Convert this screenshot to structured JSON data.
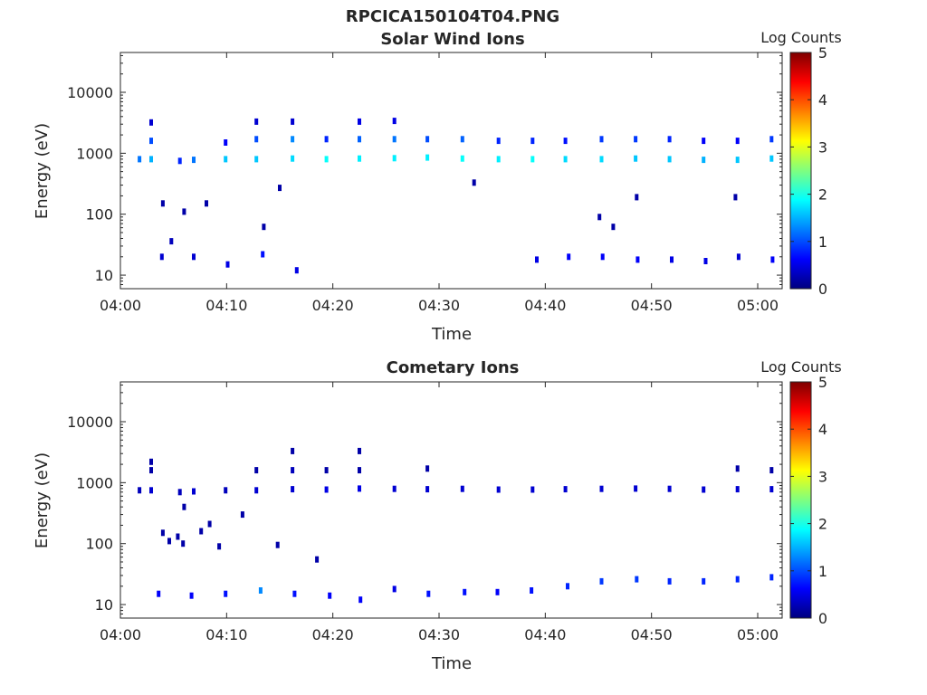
{
  "figure_title": "RPCICA150104T04.PNG",
  "colormap": [
    "#00007f",
    "#0000ff",
    "#007fff",
    "#00ffff",
    "#7fff7f",
    "#ffff00",
    "#ff7f00",
    "#ff0000",
    "#7f0000"
  ],
  "chart_data": [
    {
      "type": "heatmap",
      "title": "Solar Wind Ions",
      "xlabel": "Time",
      "ylabel": "Energy (eV)",
      "x_ticks": [
        "04:00",
        "04:10",
        "04:20",
        "04:30",
        "04:40",
        "04:50",
        "05:00"
      ],
      "x_tick_minutes": [
        0,
        10,
        20,
        30,
        40,
        50,
        60
      ],
      "xlim_minutes": [
        0,
        62.3
      ],
      "y_scale": "log",
      "ylim": [
        6,
        45000
      ],
      "y_ticks": [
        "10",
        "100",
        "1000",
        "10000"
      ],
      "y_tick_values": [
        10,
        100,
        1000,
        10000
      ],
      "colorbar_label": "Log Counts",
      "colorbar_ticks": [
        "0",
        "1",
        "2",
        "3",
        "4",
        "5"
      ],
      "colorbar_range": [
        0,
        5
      ],
      "sweep_minutes": [
        1.8,
        2.9,
        5.6,
        6.9,
        9.9,
        12.8,
        16.2,
        19.4,
        22.5,
        25.8,
        28.9,
        32.2,
        35.6,
        38.8,
        41.9,
        45.3,
        48.5,
        51.7,
        54.9,
        58.1,
        61.3
      ],
      "cells": [
        {
          "t": 1.8,
          "e": 800,
          "v": 1.2
        },
        {
          "t": 2.9,
          "e": 800,
          "v": 1.5
        },
        {
          "t": 2.9,
          "e": 1600,
          "v": 1.0
        },
        {
          "t": 2.9,
          "e": 3200,
          "v": 0.4
        },
        {
          "t": 5.6,
          "e": 750,
          "v": 0.8
        },
        {
          "t": 6.9,
          "e": 780,
          "v": 1.2
        },
        {
          "t": 9.9,
          "e": 800,
          "v": 1.6
        },
        {
          "t": 9.9,
          "e": 1500,
          "v": 0.6
        },
        {
          "t": 12.8,
          "e": 800,
          "v": 1.6
        },
        {
          "t": 12.8,
          "e": 1700,
          "v": 1.0
        },
        {
          "t": 12.8,
          "e": 3300,
          "v": 0.4
        },
        {
          "t": 16.2,
          "e": 820,
          "v": 1.7
        },
        {
          "t": 16.2,
          "e": 1700,
          "v": 1.3
        },
        {
          "t": 16.2,
          "e": 3300,
          "v": 0.4
        },
        {
          "t": 19.4,
          "e": 800,
          "v": 1.9
        },
        {
          "t": 19.4,
          "e": 1700,
          "v": 0.8
        },
        {
          "t": 22.5,
          "e": 820,
          "v": 1.8
        },
        {
          "t": 22.5,
          "e": 1700,
          "v": 1.1
        },
        {
          "t": 22.5,
          "e": 3300,
          "v": 0.5
        },
        {
          "t": 25.8,
          "e": 830,
          "v": 1.8
        },
        {
          "t": 25.8,
          "e": 1700,
          "v": 1.2
        },
        {
          "t": 25.8,
          "e": 3400,
          "v": 0.5
        },
        {
          "t": 28.9,
          "e": 850,
          "v": 1.8
        },
        {
          "t": 28.9,
          "e": 1700,
          "v": 1.0
        },
        {
          "t": 32.2,
          "e": 820,
          "v": 1.9
        },
        {
          "t": 32.2,
          "e": 1700,
          "v": 1.1
        },
        {
          "t": 35.6,
          "e": 800,
          "v": 1.8
        },
        {
          "t": 35.6,
          "e": 1600,
          "v": 0.8
        },
        {
          "t": 38.8,
          "e": 800,
          "v": 1.9
        },
        {
          "t": 38.8,
          "e": 1600,
          "v": 0.8
        },
        {
          "t": 41.9,
          "e": 800,
          "v": 1.7
        },
        {
          "t": 41.9,
          "e": 1600,
          "v": 0.7
        },
        {
          "t": 45.3,
          "e": 800,
          "v": 1.7
        },
        {
          "t": 45.3,
          "e": 1700,
          "v": 0.9
        },
        {
          "t": 48.5,
          "e": 820,
          "v": 1.6
        },
        {
          "t": 48.5,
          "e": 1700,
          "v": 0.9
        },
        {
          "t": 51.7,
          "e": 800,
          "v": 1.6
        },
        {
          "t": 51.7,
          "e": 1700,
          "v": 0.8
        },
        {
          "t": 54.9,
          "e": 780,
          "v": 1.5
        },
        {
          "t": 54.9,
          "e": 1600,
          "v": 0.6
        },
        {
          "t": 58.1,
          "e": 780,
          "v": 1.6
        },
        {
          "t": 58.1,
          "e": 1600,
          "v": 0.6
        },
        {
          "t": 61.3,
          "e": 820,
          "v": 1.6
        },
        {
          "t": 61.3,
          "e": 1700,
          "v": 0.9
        },
        {
          "t": 3.9,
          "e": 20,
          "v": 0.4
        },
        {
          "t": 6.9,
          "e": 20,
          "v": 0.4
        },
        {
          "t": 10.1,
          "e": 15,
          "v": 0.5
        },
        {
          "t": 13.4,
          "e": 22,
          "v": 0.7
        },
        {
          "t": 16.6,
          "e": 12,
          "v": 0.5
        },
        {
          "t": 39.2,
          "e": 18,
          "v": 0.5
        },
        {
          "t": 42.2,
          "e": 20,
          "v": 0.6
        },
        {
          "t": 45.4,
          "e": 20,
          "v": 0.6
        },
        {
          "t": 48.7,
          "e": 18,
          "v": 0.6
        },
        {
          "t": 51.9,
          "e": 18,
          "v": 0.5
        },
        {
          "t": 55.1,
          "e": 17,
          "v": 0.5
        },
        {
          "t": 58.2,
          "e": 20,
          "v": 0.4
        },
        {
          "t": 61.4,
          "e": 18,
          "v": 0.6
        },
        {
          "t": 4.0,
          "e": 150,
          "v": 0.2
        },
        {
          "t": 6.0,
          "e": 110,
          "v": 0.2
        },
        {
          "t": 8.1,
          "e": 150,
          "v": 0.2
        },
        {
          "t": 15.0,
          "e": 270,
          "v": 0.2
        },
        {
          "t": 33.3,
          "e": 330,
          "v": 0.2
        },
        {
          "t": 45.1,
          "e": 90,
          "v": 0.2
        },
        {
          "t": 48.6,
          "e": 190,
          "v": 0.2
        },
        {
          "t": 57.9,
          "e": 190,
          "v": 0.2
        },
        {
          "t": 4.8,
          "e": 36,
          "v": 0.3
        },
        {
          "t": 13.5,
          "e": 62,
          "v": 0.2
        },
        {
          "t": 46.4,
          "e": 62,
          "v": 0.2
        }
      ]
    },
    {
      "type": "heatmap",
      "title": "Cometary Ions",
      "xlabel": "Time",
      "ylabel": "Energy (eV)",
      "x_ticks": [
        "04:00",
        "04:10",
        "04:20",
        "04:30",
        "04:40",
        "04:50",
        "05:00"
      ],
      "x_tick_minutes": [
        0,
        10,
        20,
        30,
        40,
        50,
        60
      ],
      "xlim_minutes": [
        0,
        62.3
      ],
      "y_scale": "log",
      "ylim": [
        6,
        45000
      ],
      "y_ticks": [
        "10",
        "100",
        "1000",
        "10000"
      ],
      "y_tick_values": [
        10,
        100,
        1000,
        10000
      ],
      "colorbar_label": "Log Counts",
      "colorbar_ticks": [
        "0",
        "1",
        "2",
        "3",
        "4",
        "5"
      ],
      "colorbar_range": [
        0,
        5
      ],
      "sweep_minutes": [
        1.8,
        2.9,
        5.6,
        6.9,
        9.9,
        12.8,
        16.2,
        19.4,
        22.5,
        25.8,
        28.9,
        32.2,
        35.6,
        38.8,
        41.9,
        45.3,
        48.5,
        51.7,
        54.9,
        58.1,
        61.3
      ],
      "cells": [
        {
          "t": 1.8,
          "e": 750,
          "v": 0.3
        },
        {
          "t": 2.9,
          "e": 750,
          "v": 0.4
        },
        {
          "t": 2.9,
          "e": 1600,
          "v": 0.2
        },
        {
          "t": 2.9,
          "e": 2200,
          "v": 0.2
        },
        {
          "t": 5.6,
          "e": 700,
          "v": 0.3
        },
        {
          "t": 6.9,
          "e": 720,
          "v": 0.4
        },
        {
          "t": 9.9,
          "e": 750,
          "v": 0.3
        },
        {
          "t": 12.8,
          "e": 750,
          "v": 0.4
        },
        {
          "t": 12.8,
          "e": 1600,
          "v": 0.2
        },
        {
          "t": 16.2,
          "e": 780,
          "v": 0.4
        },
        {
          "t": 16.2,
          "e": 1600,
          "v": 0.3
        },
        {
          "t": 16.2,
          "e": 3300,
          "v": 0.2
        },
        {
          "t": 19.4,
          "e": 770,
          "v": 0.5
        },
        {
          "t": 19.4,
          "e": 1600,
          "v": 0.2
        },
        {
          "t": 22.5,
          "e": 800,
          "v": 0.5
        },
        {
          "t": 22.5,
          "e": 1600,
          "v": 0.2
        },
        {
          "t": 22.5,
          "e": 3300,
          "v": 0.2
        },
        {
          "t": 25.8,
          "e": 790,
          "v": 0.4
        },
        {
          "t": 28.9,
          "e": 780,
          "v": 0.4
        },
        {
          "t": 28.9,
          "e": 1700,
          "v": 0.2
        },
        {
          "t": 32.2,
          "e": 790,
          "v": 0.4
        },
        {
          "t": 35.6,
          "e": 770,
          "v": 0.4
        },
        {
          "t": 38.8,
          "e": 770,
          "v": 0.4
        },
        {
          "t": 41.9,
          "e": 780,
          "v": 0.4
        },
        {
          "t": 45.3,
          "e": 790,
          "v": 0.4
        },
        {
          "t": 48.5,
          "e": 800,
          "v": 0.4
        },
        {
          "t": 51.7,
          "e": 790,
          "v": 0.4
        },
        {
          "t": 54.9,
          "e": 770,
          "v": 0.4
        },
        {
          "t": 58.1,
          "e": 780,
          "v": 0.4
        },
        {
          "t": 58.1,
          "e": 1700,
          "v": 0.2
        },
        {
          "t": 61.3,
          "e": 780,
          "v": 0.4
        },
        {
          "t": 61.3,
          "e": 1600,
          "v": 0.2
        },
        {
          "t": 3.6,
          "e": 15,
          "v": 0.6
        },
        {
          "t": 6.7,
          "e": 14,
          "v": 0.6
        },
        {
          "t": 9.9,
          "e": 15,
          "v": 0.7
        },
        {
          "t": 13.2,
          "e": 17,
          "v": 1.3
        },
        {
          "t": 16.4,
          "e": 15,
          "v": 0.7
        },
        {
          "t": 19.7,
          "e": 14,
          "v": 0.6
        },
        {
          "t": 22.6,
          "e": 12,
          "v": 0.6
        },
        {
          "t": 25.8,
          "e": 18,
          "v": 0.5
        },
        {
          "t": 29.0,
          "e": 15,
          "v": 0.7
        },
        {
          "t": 32.4,
          "e": 16,
          "v": 0.7
        },
        {
          "t": 35.5,
          "e": 16,
          "v": 0.6
        },
        {
          "t": 38.7,
          "e": 17,
          "v": 0.7
        },
        {
          "t": 42.1,
          "e": 20,
          "v": 0.8
        },
        {
          "t": 45.3,
          "e": 24,
          "v": 0.9
        },
        {
          "t": 48.6,
          "e": 26,
          "v": 0.9
        },
        {
          "t": 51.7,
          "e": 24,
          "v": 0.8
        },
        {
          "t": 54.9,
          "e": 24,
          "v": 0.8
        },
        {
          "t": 58.1,
          "e": 26,
          "v": 0.8
        },
        {
          "t": 61.3,
          "e": 28,
          "v": 0.8
        },
        {
          "t": 4.0,
          "e": 150,
          "v": 0.2
        },
        {
          "t": 4.6,
          "e": 110,
          "v": 0.2
        },
        {
          "t": 5.4,
          "e": 130,
          "v": 0.2
        },
        {
          "t": 5.9,
          "e": 100,
          "v": 0.2
        },
        {
          "t": 7.6,
          "e": 160,
          "v": 0.2
        },
        {
          "t": 8.4,
          "e": 210,
          "v": 0.2
        },
        {
          "t": 9.3,
          "e": 90,
          "v": 0.2
        },
        {
          "t": 11.5,
          "e": 300,
          "v": 0.2
        },
        {
          "t": 14.8,
          "e": 95,
          "v": 0.2
        },
        {
          "t": 18.5,
          "e": 55,
          "v": 0.2
        },
        {
          "t": 6.0,
          "e": 400,
          "v": 0.2
        }
      ]
    }
  ]
}
